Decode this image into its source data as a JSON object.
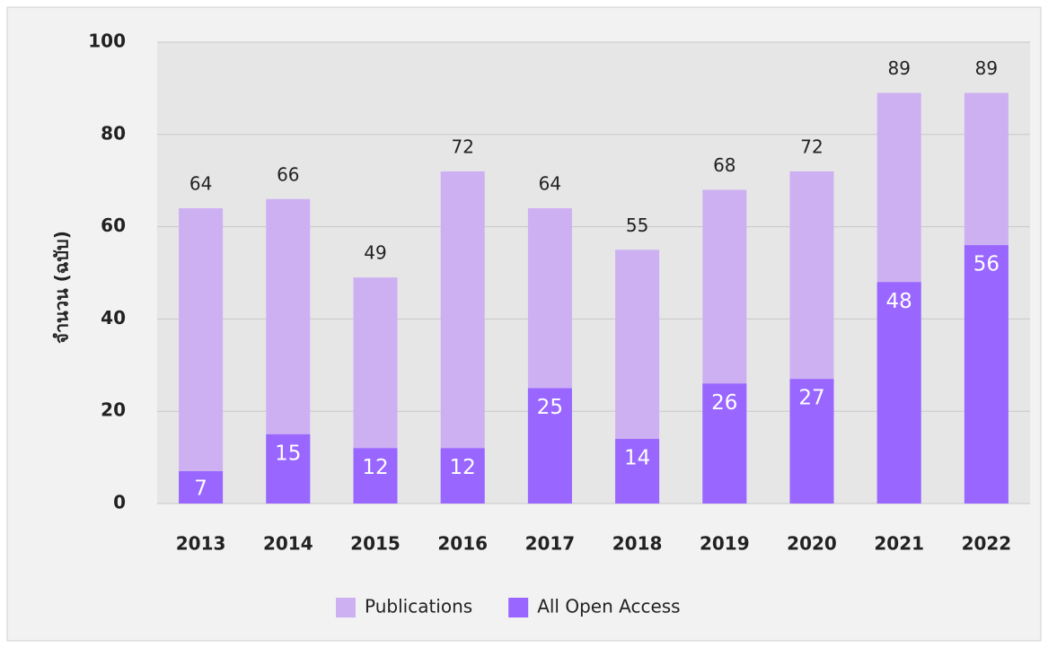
{
  "chart_data": {
    "type": "bar",
    "overlap": true,
    "ylabel": "จำนวน (ฉบับ)",
    "categories": [
      "2013",
      "2014",
      "2015",
      "2016",
      "2017",
      "2018",
      "2019",
      "2020",
      "2021",
      "2022"
    ],
    "series": [
      {
        "name": "Publications",
        "color": "#cdb0f2",
        "values": [
          64,
          66,
          49,
          72,
          64,
          55,
          68,
          72,
          89,
          89
        ]
      },
      {
        "name": "All Open Access",
        "color": "#9966ff",
        "values": [
          7,
          15,
          12,
          12,
          25,
          14,
          26,
          27,
          48,
          56
        ]
      }
    ],
    "ylim": [
      0,
      100
    ],
    "yticks": [
      0,
      20,
      40,
      60,
      80,
      100
    ],
    "grid": true,
    "legend": "bottom"
  }
}
